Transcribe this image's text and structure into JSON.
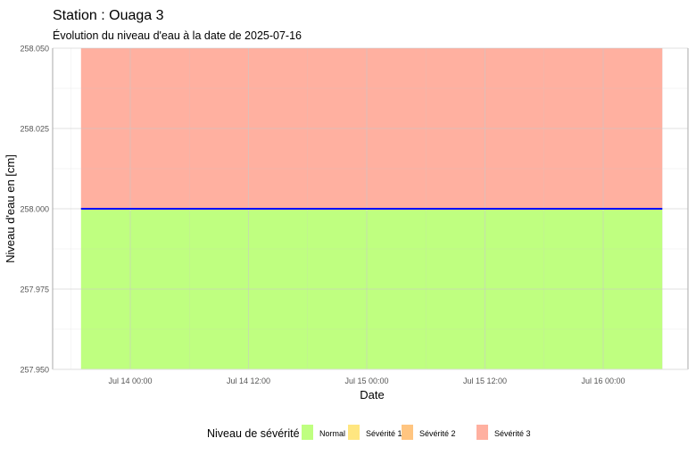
{
  "chart_data": {
    "type": "area",
    "title": "Station : Ouaga 3",
    "subtitle": "Évolution du niveau d'eau à la date de 2025-07-16",
    "xlabel": "Date",
    "ylabel": "Niveau d'eau en [cm]",
    "x_range": [
      "2025-07-13T19:00",
      "2025-07-16T06:00"
    ],
    "ylim": [
      257.95,
      258.05
    ],
    "x_ticks": [
      {
        "t": "2025-07-14T00:00",
        "label": "Jul 14 00:00"
      },
      {
        "t": "2025-07-14T12:00",
        "label": "Jul 14 12:00"
      },
      {
        "t": "2025-07-15T00:00",
        "label": "Jul 15 00:00"
      },
      {
        "t": "2025-07-15T12:00",
        "label": "Jul 15 12:00"
      },
      {
        "t": "2025-07-16T00:00",
        "label": "Jul 16 00:00"
      }
    ],
    "y_ticks": [
      257.95,
      257.975,
      258.0,
      258.025,
      258.05
    ],
    "y_tick_labels": [
      "257.950",
      "257.975",
      "258.000",
      "258.025",
      "258.050"
    ],
    "bands": [
      {
        "name": "Normal",
        "from": 257.95,
        "to": 258.0,
        "color": "#bfff80"
      },
      {
        "name": "Sévérité 3",
        "from": 258.0,
        "to": 258.05,
        "color": "#ffb0a0"
      }
    ],
    "series": [
      {
        "x": [
          "2025-07-13T19:00",
          "2025-07-16T06:00"
        ],
        "y": [
          258.0,
          258.0
        ],
        "color": "#0000ff"
      }
    ],
    "grid": true,
    "legend": {
      "title": "Niveau de sévérité",
      "placement": "bottom",
      "items": [
        {
          "label": "Normal",
          "color": "#bfff80"
        },
        {
          "label": "Sévérité 1",
          "color": "#ffe680"
        },
        {
          "label": "Sévérité 2",
          "color": "#ffc580"
        },
        {
          "label": "Sévérité 3",
          "color": "#ffb0a0"
        }
      ]
    }
  }
}
